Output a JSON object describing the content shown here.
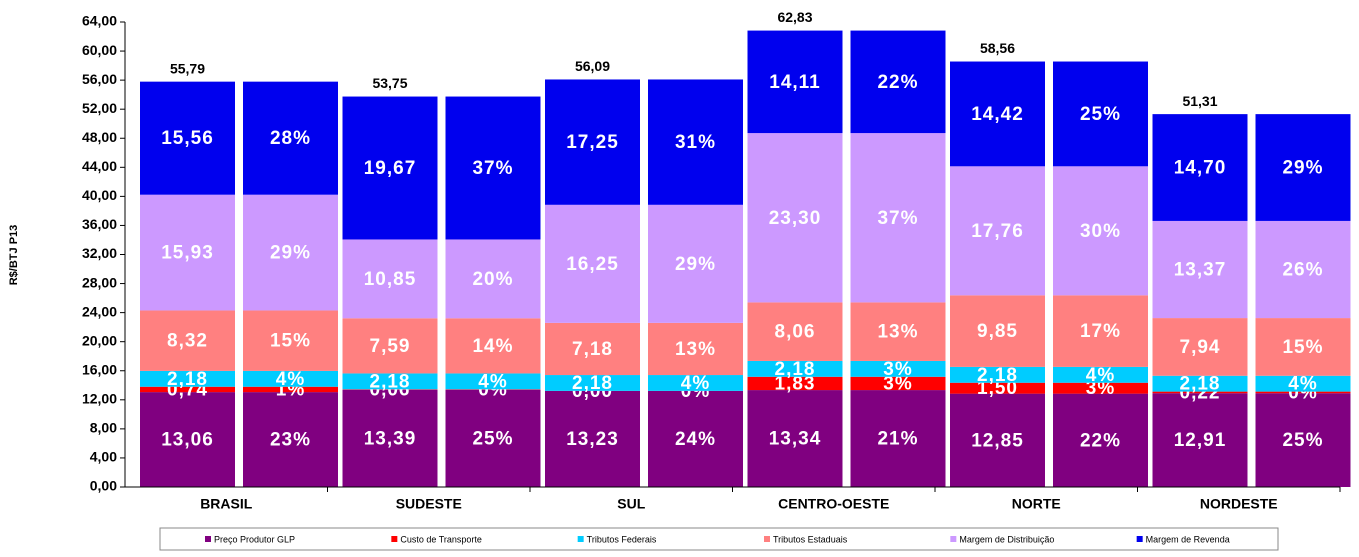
{
  "chart_data": {
    "type": "stacked-bar-pair",
    "y_label": "R$/BTJ P13",
    "categories": [
      "BRASIL",
      "SUDESTE",
      "SUL",
      "CENTRO-OESTE",
      "NORTE",
      "NORDESTE"
    ],
    "ylim": [
      0,
      64
    ],
    "yticks": [
      {
        "value": 0,
        "label": "0,00"
      },
      {
        "value": 4,
        "label": "4,00"
      },
      {
        "value": 8,
        "label": "8,00"
      },
      {
        "value": 12,
        "label": "12,00"
      },
      {
        "value": 16,
        "label": "16,00"
      },
      {
        "value": 20,
        "label": "20,00"
      },
      {
        "value": 24,
        "label": "24,00"
      },
      {
        "value": 28,
        "label": "28,00"
      },
      {
        "value": 32,
        "label": "32,00"
      },
      {
        "value": 36,
        "label": "36,00"
      },
      {
        "value": 40,
        "label": "40,00"
      },
      {
        "value": 44,
        "label": "44,00"
      },
      {
        "value": 48,
        "label": "48,00"
      },
      {
        "value": 52,
        "label": "52,00"
      },
      {
        "value": 56,
        "label": "56,00"
      },
      {
        "value": 60,
        "label": "60,00"
      },
      {
        "value": 64,
        "label": "64,00"
      }
    ],
    "totals": [
      55.79,
      53.75,
      56.09,
      62.83,
      58.56,
      51.31
    ],
    "total_labels": [
      "55,79",
      "53,75",
      "56,09",
      "62,83",
      "58,56",
      "51,31"
    ],
    "series": [
      {
        "name": "Preço Produtor GLP",
        "color": "#800080",
        "values": [
          13.06,
          13.39,
          13.23,
          13.34,
          12.85,
          12.91
        ],
        "value_labels": [
          "13,06",
          "13,39",
          "13,23",
          "13,34",
          "12,85",
          "12,91"
        ],
        "share_labels": [
          "23%",
          "25%",
          "24%",
          "21%",
          "22%",
          "25%"
        ]
      },
      {
        "name": "Custo de Transporte",
        "color": "#ff0000",
        "values": [
          0.74,
          0.06,
          0.0,
          1.83,
          1.5,
          0.22
        ],
        "value_labels": [
          "0,74",
          "0,06",
          "0,00",
          "1,83",
          "1,50",
          "0,22"
        ],
        "share_labels": [
          "1%",
          "0%",
          "0%",
          "3%",
          "3%",
          "0%"
        ]
      },
      {
        "name": "Tributos Federais",
        "color": "#00ccff",
        "values": [
          2.18,
          2.18,
          2.18,
          2.18,
          2.18,
          2.18
        ],
        "value_labels": [
          "2,18",
          "2,18",
          "2,18",
          "2,18",
          "2,18",
          "2,18"
        ],
        "share_labels": [
          "4%",
          "4%",
          "4%",
          "3%",
          "4%",
          "4%"
        ]
      },
      {
        "name": "Tributos Estaduais",
        "color": "#ff8080",
        "values": [
          8.32,
          7.59,
          7.18,
          8.06,
          9.85,
          7.94
        ],
        "value_labels": [
          "8,32",
          "7,59",
          "7,18",
          "8,06",
          "9,85",
          "7,94"
        ],
        "share_labels": [
          "15%",
          "14%",
          "13%",
          "13%",
          "17%",
          "15%"
        ]
      },
      {
        "name": "Margem de Distribuição",
        "color": "#cc99ff",
        "values": [
          15.93,
          10.85,
          16.25,
          23.3,
          17.76,
          13.37
        ],
        "value_labels": [
          "15,93",
          "10,85",
          "16,25",
          "23,30",
          "17,76",
          "13,37"
        ],
        "share_labels": [
          "29%",
          "20%",
          "29%",
          "37%",
          "30%",
          "26%"
        ]
      },
      {
        "name": "Margem de Revenda",
        "color": "#0000ee",
        "values": [
          15.56,
          19.67,
          17.25,
          14.11,
          14.42,
          14.7
        ],
        "value_labels": [
          "15,56",
          "19,67",
          "17,25",
          "14,11",
          "14,42",
          "14,70"
        ],
        "share_labels": [
          "28%",
          "37%",
          "31%",
          "22%",
          "25%",
          "29%"
        ]
      }
    ]
  }
}
